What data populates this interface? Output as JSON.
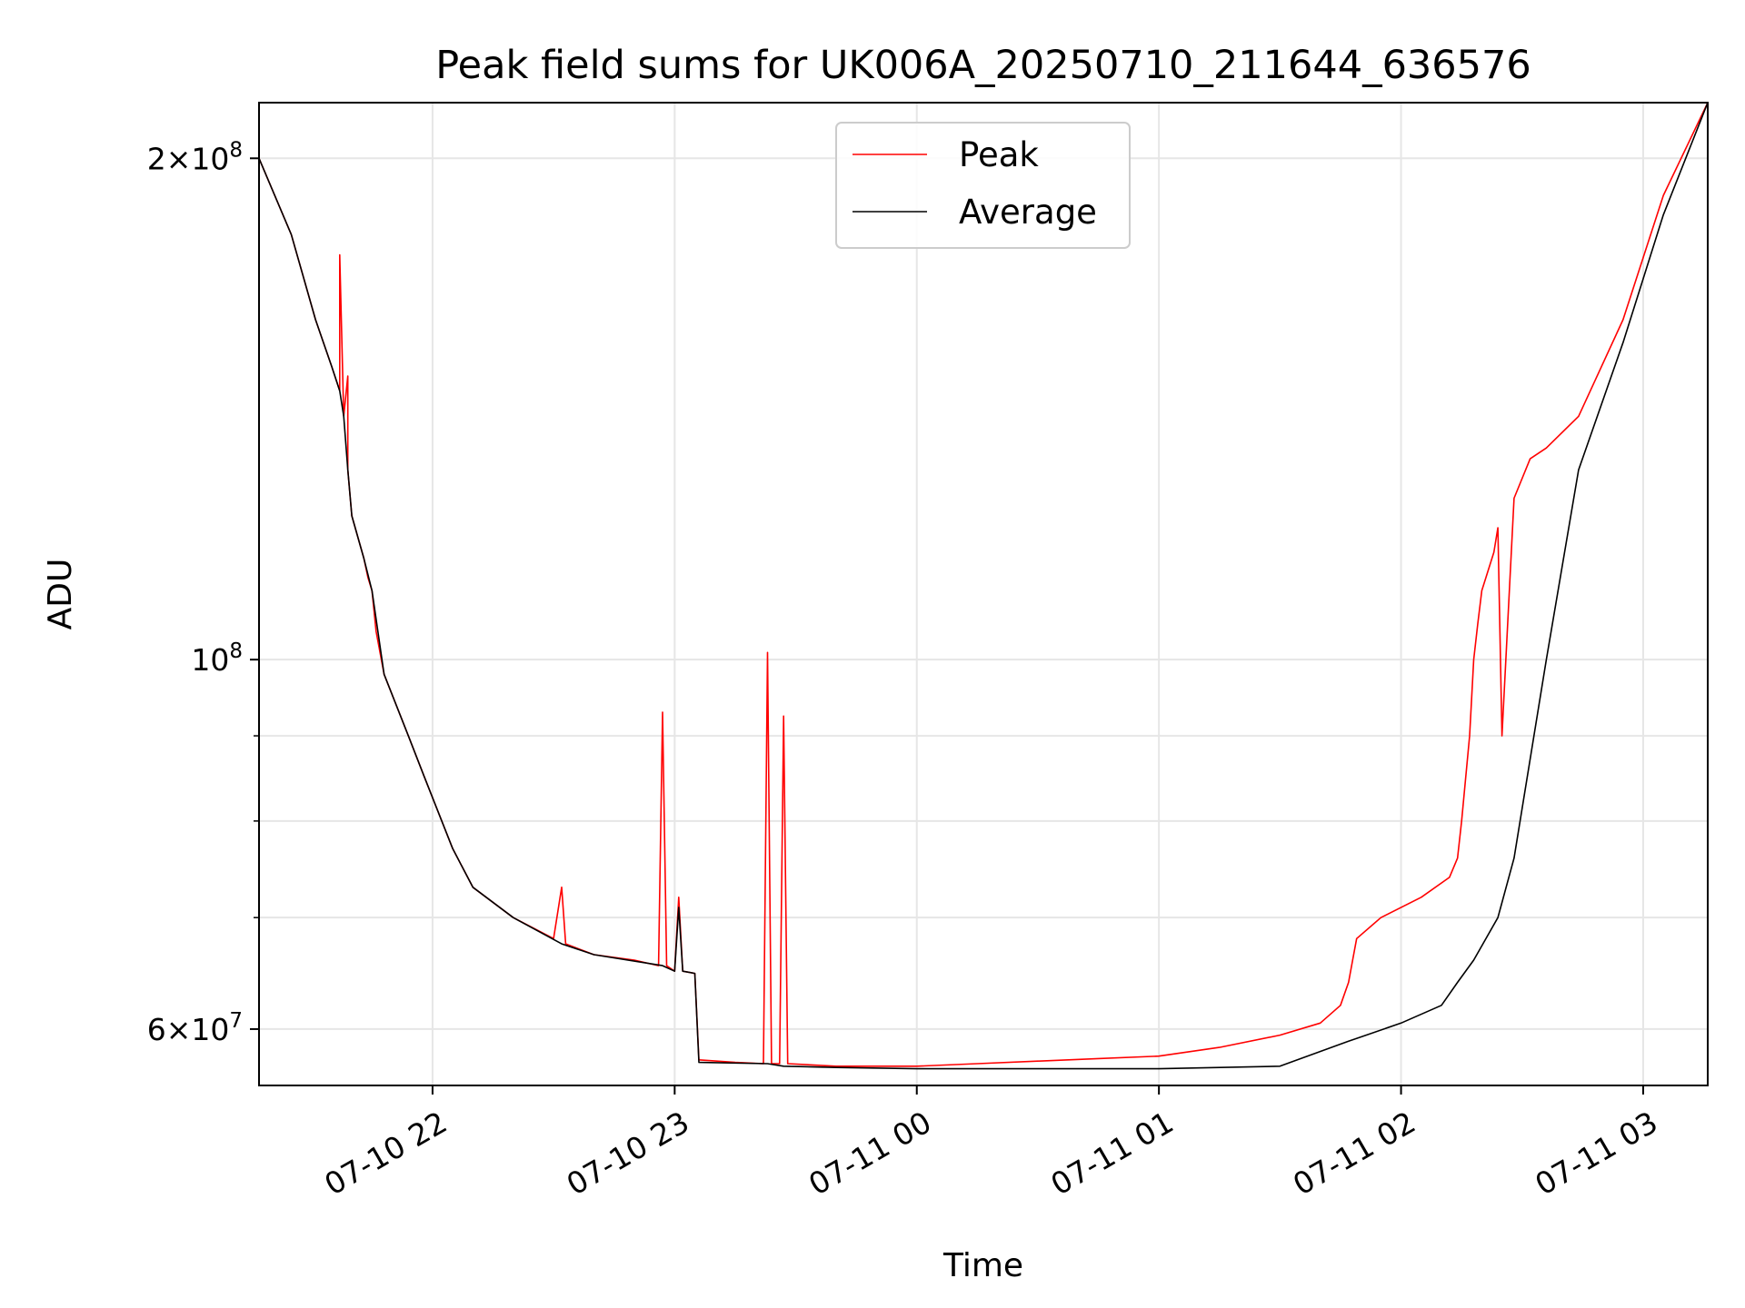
{
  "chart_data": {
    "type": "line",
    "title": "Peak field sums for UK006A_20250710_211644_636576",
    "xlabel": "Time",
    "ylabel": "ADU",
    "yscale": "log",
    "xlim": [
      "2025-07-10 21:17",
      "2025-07-11 03:16"
    ],
    "ylim": [
      55500000,
      216000000
    ],
    "grid": true,
    "legend_position": "upper center",
    "x_ticks": [
      {
        "value": "2025-07-10 22:00",
        "label": "07-10 22"
      },
      {
        "value": "2025-07-10 23:00",
        "label": "07-10 23"
      },
      {
        "value": "2025-07-11 00:00",
        "label": "07-11 00"
      },
      {
        "value": "2025-07-11 01:00",
        "label": "07-11 01"
      },
      {
        "value": "2025-07-11 02:00",
        "label": "07-11 02"
      },
      {
        "value": "2025-07-11 03:00",
        "label": "07-11 03"
      }
    ],
    "y_ticks_major": [
      {
        "value": 60000000,
        "base": "6×10",
        "exp": "7"
      },
      {
        "value": 100000000,
        "base": "10",
        "exp": "8"
      },
      {
        "value": 200000000,
        "base": "2×10",
        "exp": "8"
      }
    ],
    "y_ticks_minor": [
      70000000,
      80000000,
      90000000
    ],
    "series": [
      {
        "name": "Peak",
        "color": "#ff0000",
        "x": [
          "2025-07-10 21:17",
          "2025-07-10 21:25",
          "2025-07-10 21:31",
          "2025-07-10 21:35",
          "2025-07-10 21:37",
          "2025-07-10 21:37",
          "2025-07-10 21:38",
          "2025-07-10 21:39",
          "2025-07-10 21:39",
          "2025-07-10 21:40",
          "2025-07-10 21:43",
          "2025-07-10 21:44",
          "2025-07-10 21:45",
          "2025-07-10 21:46",
          "2025-07-10 21:48",
          "2025-07-10 21:54",
          "2025-07-10 21:58",
          "2025-07-10 22:05",
          "2025-07-10 22:10",
          "2025-07-10 22:20",
          "2025-07-10 22:30",
          "2025-07-10 22:32",
          "2025-07-10 22:33",
          "2025-07-10 22:40",
          "2025-07-10 22:50",
          "2025-07-10 22:56",
          "2025-07-10 22:57",
          "2025-07-10 22:58",
          "2025-07-10 23:00",
          "2025-07-10 23:01",
          "2025-07-10 23:02",
          "2025-07-10 23:05",
          "2025-07-10 23:06",
          "2025-07-10 23:15",
          "2025-07-10 23:22",
          "2025-07-10 23:23",
          "2025-07-10 23:24",
          "2025-07-10 23:26",
          "2025-07-10 23:27",
          "2025-07-10 23:28",
          "2025-07-10 23:40",
          "2025-07-10 23:50",
          "2025-07-11 00:00",
          "2025-07-11 00:15",
          "2025-07-11 00:30",
          "2025-07-11 00:45",
          "2025-07-11 01:00",
          "2025-07-11 01:15",
          "2025-07-11 01:30",
          "2025-07-11 01:40",
          "2025-07-11 01:45",
          "2025-07-11 01:47",
          "2025-07-11 01:48",
          "2025-07-11 01:49",
          "2025-07-11 01:55",
          "2025-07-11 02:05",
          "2025-07-11 02:12",
          "2025-07-11 02:14",
          "2025-07-11 02:15",
          "2025-07-11 02:17",
          "2025-07-11 02:18",
          "2025-07-11 02:19",
          "2025-07-11 02:20",
          "2025-07-11 02:23",
          "2025-07-11 02:24",
          "2025-07-11 02:25",
          "2025-07-11 02:28",
          "2025-07-11 02:32",
          "2025-07-11 02:36",
          "2025-07-11 02:44",
          "2025-07-11 02:55",
          "2025-07-11 03:05",
          "2025-07-11 03:16"
        ],
        "y": [
          200000000,
          180000000,
          160000000,
          150000000,
          145000000,
          175000000,
          140000000,
          148000000,
          130000000,
          122000000,
          115000000,
          112000000,
          110000000,
          104000000,
          98000000,
          90000000,
          85000000,
          77000000,
          73000000,
          70000000,
          68000000,
          73000000,
          67500000,
          66500000,
          66000000,
          65500000,
          93000000,
          65500000,
          65000000,
          72000000,
          65000000,
          64800000,
          57500000,
          57300000,
          57200000,
          101000000,
          57200000,
          57200000,
          92500000,
          57200000,
          57000000,
          57000000,
          57000000,
          57200000,
          57400000,
          57600000,
          57800000,
          58500000,
          59500000,
          60500000,
          62000000,
          64000000,
          66000000,
          68000000,
          70000000,
          72000000,
          74000000,
          76000000,
          80000000,
          90000000,
          100000000,
          105000000,
          110000000,
          116000000,
          120000000,
          90000000,
          125000000,
          132000000,
          134000000,
          140000000,
          160000000,
          190000000,
          216000000
        ]
      },
      {
        "name": "Average",
        "color": "#000000",
        "x": [
          "2025-07-10 21:17",
          "2025-07-10 21:25",
          "2025-07-10 21:31",
          "2025-07-10 21:35",
          "2025-07-10 21:37",
          "2025-07-10 21:38",
          "2025-07-10 21:39",
          "2025-07-10 21:40",
          "2025-07-10 21:43",
          "2025-07-10 21:45",
          "2025-07-10 21:48",
          "2025-07-10 21:54",
          "2025-07-10 21:58",
          "2025-07-10 22:05",
          "2025-07-10 22:10",
          "2025-07-10 22:20",
          "2025-07-10 22:32",
          "2025-07-10 22:40",
          "2025-07-10 22:57",
          "2025-07-10 23:00",
          "2025-07-10 23:01",
          "2025-07-10 23:02",
          "2025-07-10 23:05",
          "2025-07-10 23:06",
          "2025-07-10 23:23",
          "2025-07-10 23:27",
          "2025-07-10 23:40",
          "2025-07-11 00:00",
          "2025-07-11 00:30",
          "2025-07-11 01:00",
          "2025-07-11 01:30",
          "2025-07-11 01:47",
          "2025-07-11 02:00",
          "2025-07-11 02:10",
          "2025-07-11 02:14",
          "2025-07-11 02:18",
          "2025-07-11 02:24",
          "2025-07-11 02:28",
          "2025-07-11 02:36",
          "2025-07-11 02:44",
          "2025-07-11 02:55",
          "2025-07-11 03:05",
          "2025-07-11 03:16"
        ],
        "y": [
          200000000,
          180000000,
          160000000,
          150000000,
          145000000,
          140000000,
          130000000,
          122000000,
          115000000,
          110000000,
          98000000,
          90000000,
          85000000,
          77000000,
          73000000,
          70000000,
          67500000,
          66500000,
          65500000,
          65000000,
          71000000,
          65000000,
          64800000,
          57300000,
          57200000,
          57000000,
          56900000,
          56800000,
          56800000,
          56800000,
          57000000,
          59000000,
          60500000,
          62000000,
          64000000,
          66000000,
          70000000,
          76000000,
          100000000,
          130000000,
          155000000,
          185000000,
          216000000
        ]
      }
    ]
  }
}
